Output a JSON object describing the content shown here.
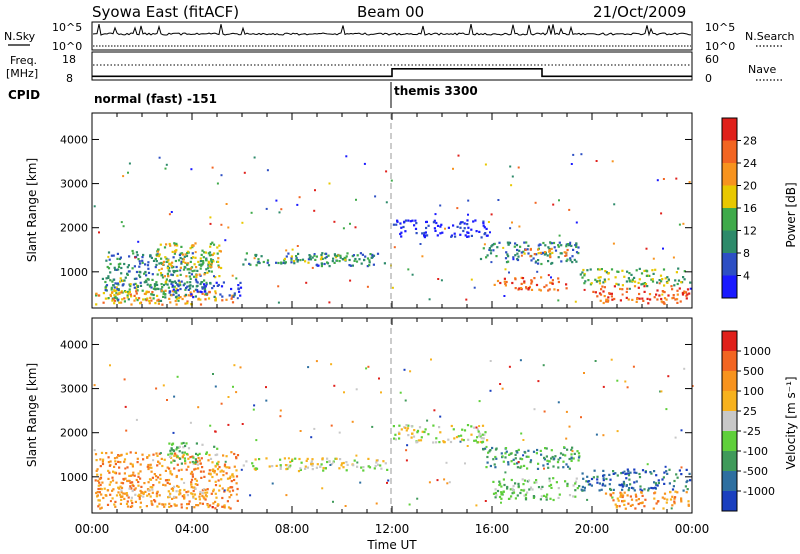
{
  "header": {
    "title": "Syowa East (fitACF)",
    "beam": "Beam 00",
    "date": "21/Oct/2009"
  },
  "top_panels": {
    "nsky_label": "N.Sky",
    "nsky_ticks": [
      "10^5",
      "10^0"
    ],
    "nsearch_label": "N.Search",
    "nsearch_ticks": [
      "10^5",
      "10^0"
    ],
    "freq_label": "Freq.",
    "freq_unit": "[MHz]",
    "freq_ticks": [
      "18",
      "8"
    ],
    "nave_label": "Nave",
    "nave_ticks": [
      "60",
      "0"
    ],
    "cpid_label": "CPID",
    "cpid_segments": [
      {
        "name": "normal (fast) -151",
        "start_h": 0,
        "end_h": 12
      },
      {
        "name": "themis 3300",
        "start_h": 12,
        "end_h": 24
      }
    ],
    "nave_steps": [
      {
        "start_h": 0,
        "end_h": 12,
        "value": 8
      },
      {
        "start_h": 12,
        "end_h": 18,
        "value": 24
      },
      {
        "start_h": 18,
        "end_h": 24,
        "value": 8
      }
    ]
  },
  "chart_data": [
    {
      "type": "heatmap",
      "name": "power",
      "ylabel": "Slant Range [km]",
      "xlabel": "Time UT",
      "xlim": [
        0,
        24
      ],
      "ylim": [
        180,
        4600
      ],
      "x_ticks": [
        "00:00",
        "04:00",
        "08:00",
        "12:00",
        "16:00",
        "20:00",
        "00:00"
      ],
      "y_ticks": [
        1000,
        2000,
        3000,
        4000
      ],
      "colorbar": {
        "label": "Power [dB]",
        "ticks": [
          "4",
          "8",
          "12",
          "16",
          "20",
          "24",
          "28"
        ],
        "colors": [
          "#1a1aff",
          "#2d4fc4",
          "#2d8a6a",
          "#3faa4a",
          "#e8c800",
          "#f7931e",
          "#f26522",
          "#e0201b"
        ]
      },
      "regions": [
        {
          "t0": 0.1,
          "t1": 3.5,
          "r0": 350,
          "r1": 900,
          "level": 3
        },
        {
          "t0": 0.5,
          "t1": 4.8,
          "r0": 600,
          "r1": 1500,
          "level": 2
        },
        {
          "t0": 2.5,
          "t1": 5.2,
          "r0": 900,
          "r1": 1700,
          "level": 4
        },
        {
          "t0": 0.1,
          "t1": 5.6,
          "r0": 280,
          "r1": 600,
          "level": 5
        },
        {
          "t0": 3.0,
          "t1": 6.0,
          "r0": 450,
          "r1": 800,
          "level": 1
        },
        {
          "t0": 6.0,
          "t1": 11.8,
          "r0": 1150,
          "r1": 1450,
          "level": 2
        },
        {
          "t0": 7.5,
          "t1": 10.5,
          "r0": 1220,
          "r1": 1400,
          "level": 3
        },
        {
          "t0": 12.0,
          "t1": 15.8,
          "r0": 1800,
          "r1": 2200,
          "level": 0
        },
        {
          "t0": 15.5,
          "t1": 19.5,
          "r0": 1200,
          "r1": 1700,
          "level": 2
        },
        {
          "t0": 17.0,
          "t1": 19.0,
          "r0": 1350,
          "r1": 1550,
          "level": 5
        },
        {
          "t0": 16.0,
          "t1": 19.0,
          "r0": 600,
          "r1": 900,
          "level": 6
        },
        {
          "t0": 19.5,
          "t1": 23.9,
          "r0": 700,
          "r1": 1100,
          "level": 3
        },
        {
          "t0": 20.0,
          "t1": 23.9,
          "r0": 300,
          "r1": 700,
          "level": 6
        }
      ]
    },
    {
      "type": "heatmap",
      "name": "velocity",
      "ylabel": "Slant Range [km]",
      "xlabel": "Time UT",
      "xlim": [
        0,
        24
      ],
      "ylim": [
        180,
        4600
      ],
      "x_ticks": [
        "00:00",
        "04:00",
        "08:00",
        "12:00",
        "16:00",
        "20:00",
        "00:00"
      ],
      "y_ticks": [
        1000,
        2000,
        3000,
        4000
      ],
      "colorbar": {
        "label": "Velocity [m s⁻¹]",
        "ticks": [
          "1000",
          "500",
          "100",
          "25",
          "-25",
          "-100",
          "-500",
          "-1000"
        ],
        "colors": [
          "#1a3fbf",
          "#2e6fa0",
          "#3f9a5a",
          "#5fcf3a",
          "#c8c8c8",
          "#f7b21e",
          "#f7931e",
          "#f26522",
          "#e0201b"
        ]
      },
      "regions": [
        {
          "t0": 0.1,
          "t1": 5.8,
          "r0": 300,
          "r1": 1600,
          "level": 6
        },
        {
          "t0": 1.0,
          "t1": 4.5,
          "r0": 500,
          "r1": 800,
          "level": 5
        },
        {
          "t0": 3.0,
          "t1": 5.0,
          "r0": 1300,
          "r1": 1800,
          "level": 3
        },
        {
          "t0": 6.0,
          "t1": 11.8,
          "r0": 1150,
          "r1": 1450,
          "level": 4
        },
        {
          "t0": 12.0,
          "t1": 15.8,
          "r0": 1800,
          "r1": 2200,
          "level": 4
        },
        {
          "t0": 15.5,
          "t1": 19.5,
          "r0": 1200,
          "r1": 1700,
          "level": 2
        },
        {
          "t0": 16.0,
          "t1": 19.5,
          "r0": 500,
          "r1": 1000,
          "level": 3
        },
        {
          "t0": 19.5,
          "t1": 23.9,
          "r0": 700,
          "r1": 1200,
          "level": 1
        },
        {
          "t0": 20.5,
          "t1": 23.9,
          "r0": 300,
          "r1": 700,
          "level": 6
        }
      ]
    }
  ]
}
